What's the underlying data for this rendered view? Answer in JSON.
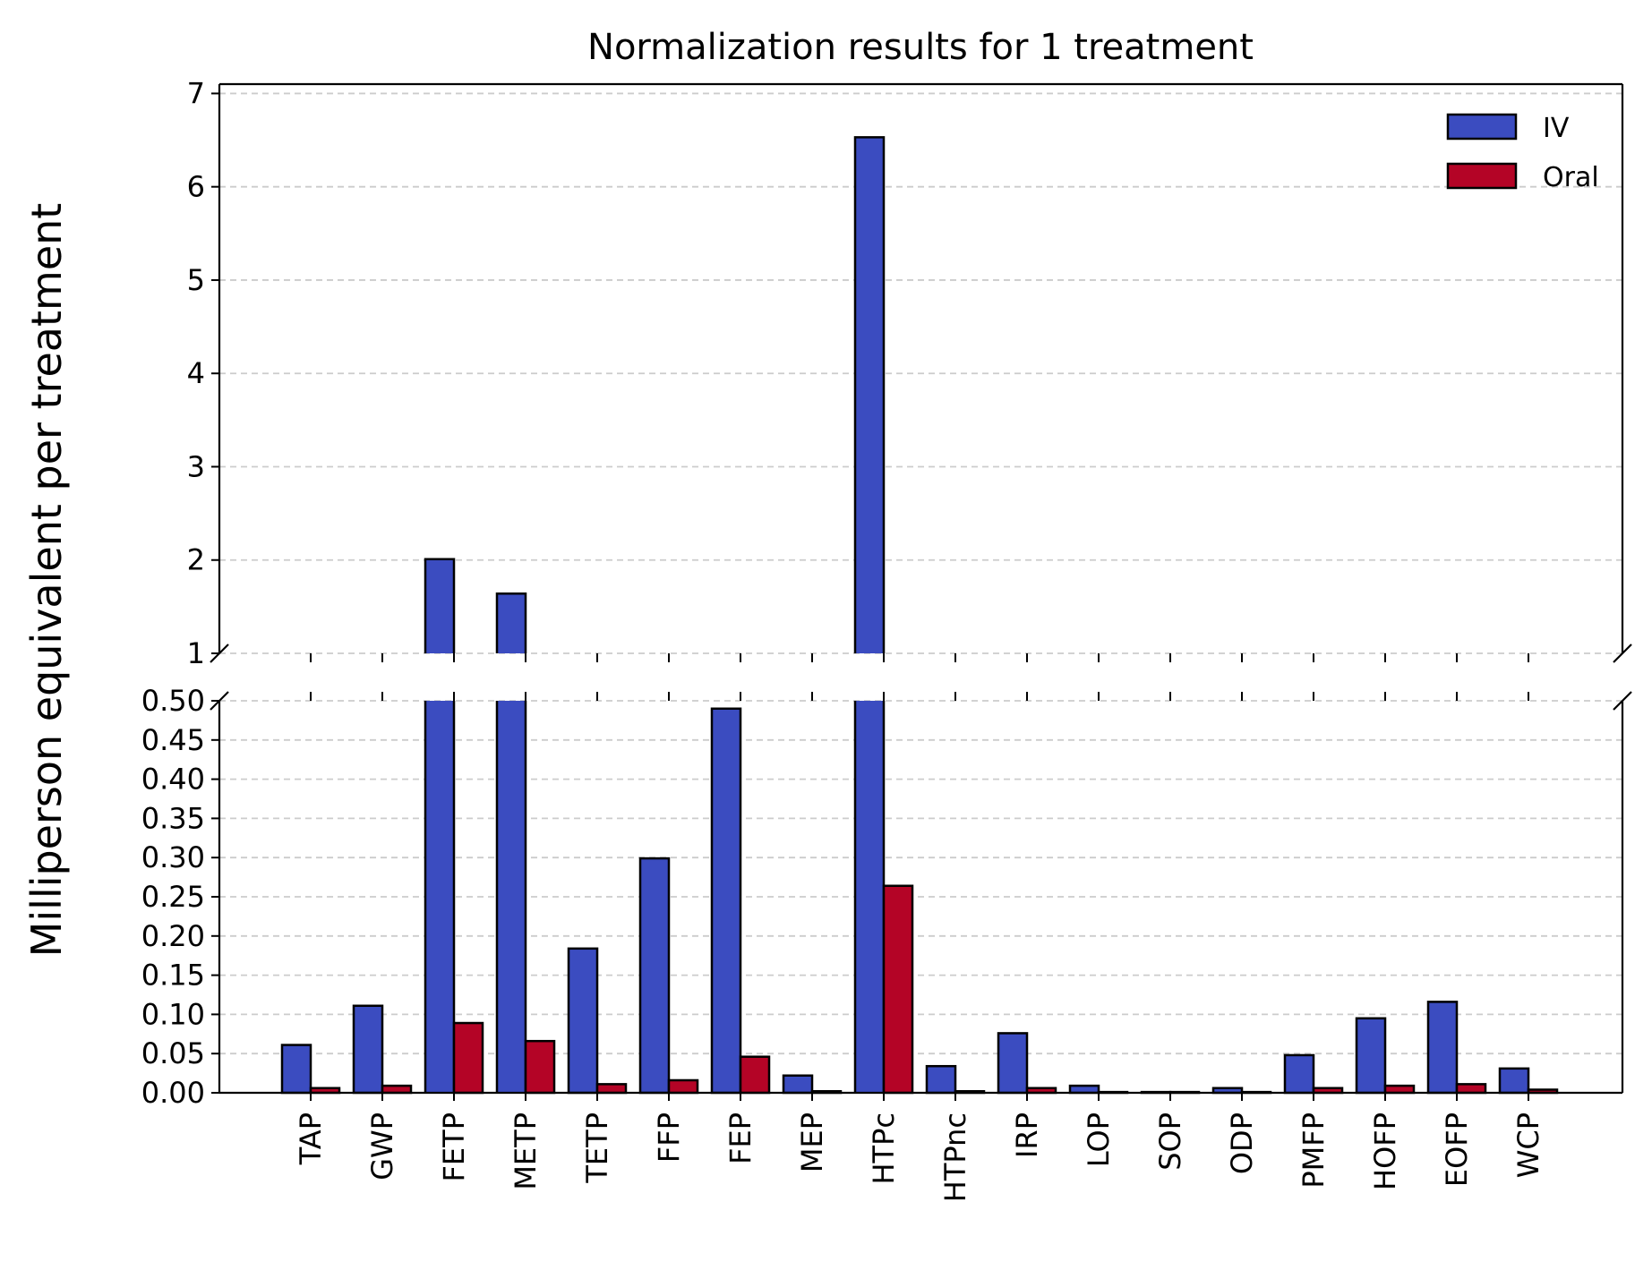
{
  "chart_data": {
    "type": "bar",
    "title": "Normalization results for 1 treatment",
    "xlabel": "",
    "ylabel": "Milliperson equivalent per treatment",
    "broken_axis": true,
    "upper_ylim": [
      1,
      7.1
    ],
    "lower_ylim": [
      0,
      0.5
    ],
    "upper_yticks": [
      1,
      2,
      3,
      4,
      5,
      6,
      7
    ],
    "lower_yticks": [
      0.0,
      0.05,
      0.1,
      0.15,
      0.2,
      0.25,
      0.3,
      0.35,
      0.4,
      0.45,
      0.5
    ],
    "grid": "horizontal dashed",
    "legend": "top-right",
    "categories": [
      "TAP",
      "GWP",
      "FETP",
      "METP",
      "TETP",
      "FFP",
      "FEP",
      "MEP",
      "HTPc",
      "HTPnc",
      "IRP",
      "LOP",
      "SOP",
      "ODP",
      "PMFP",
      "HOFP",
      "EOFP",
      "WCP"
    ],
    "series": [
      {
        "name": "IV",
        "color": "#3b4cc0",
        "values": [
          0.061,
          0.111,
          2.01,
          1.64,
          0.184,
          0.299,
          0.49,
          0.022,
          6.53,
          0.034,
          0.076,
          0.009,
          0.001,
          0.006,
          0.048,
          0.095,
          0.116,
          0.031
        ]
      },
      {
        "name": "Oral",
        "color": "#b40426",
        "values": [
          0.006,
          0.009,
          0.089,
          0.066,
          0.011,
          0.016,
          0.046,
          0.002,
          0.264,
          0.002,
          0.006,
          0.001,
          0.001,
          0.001,
          0.006,
          0.009,
          0.011,
          0.004
        ]
      }
    ]
  }
}
